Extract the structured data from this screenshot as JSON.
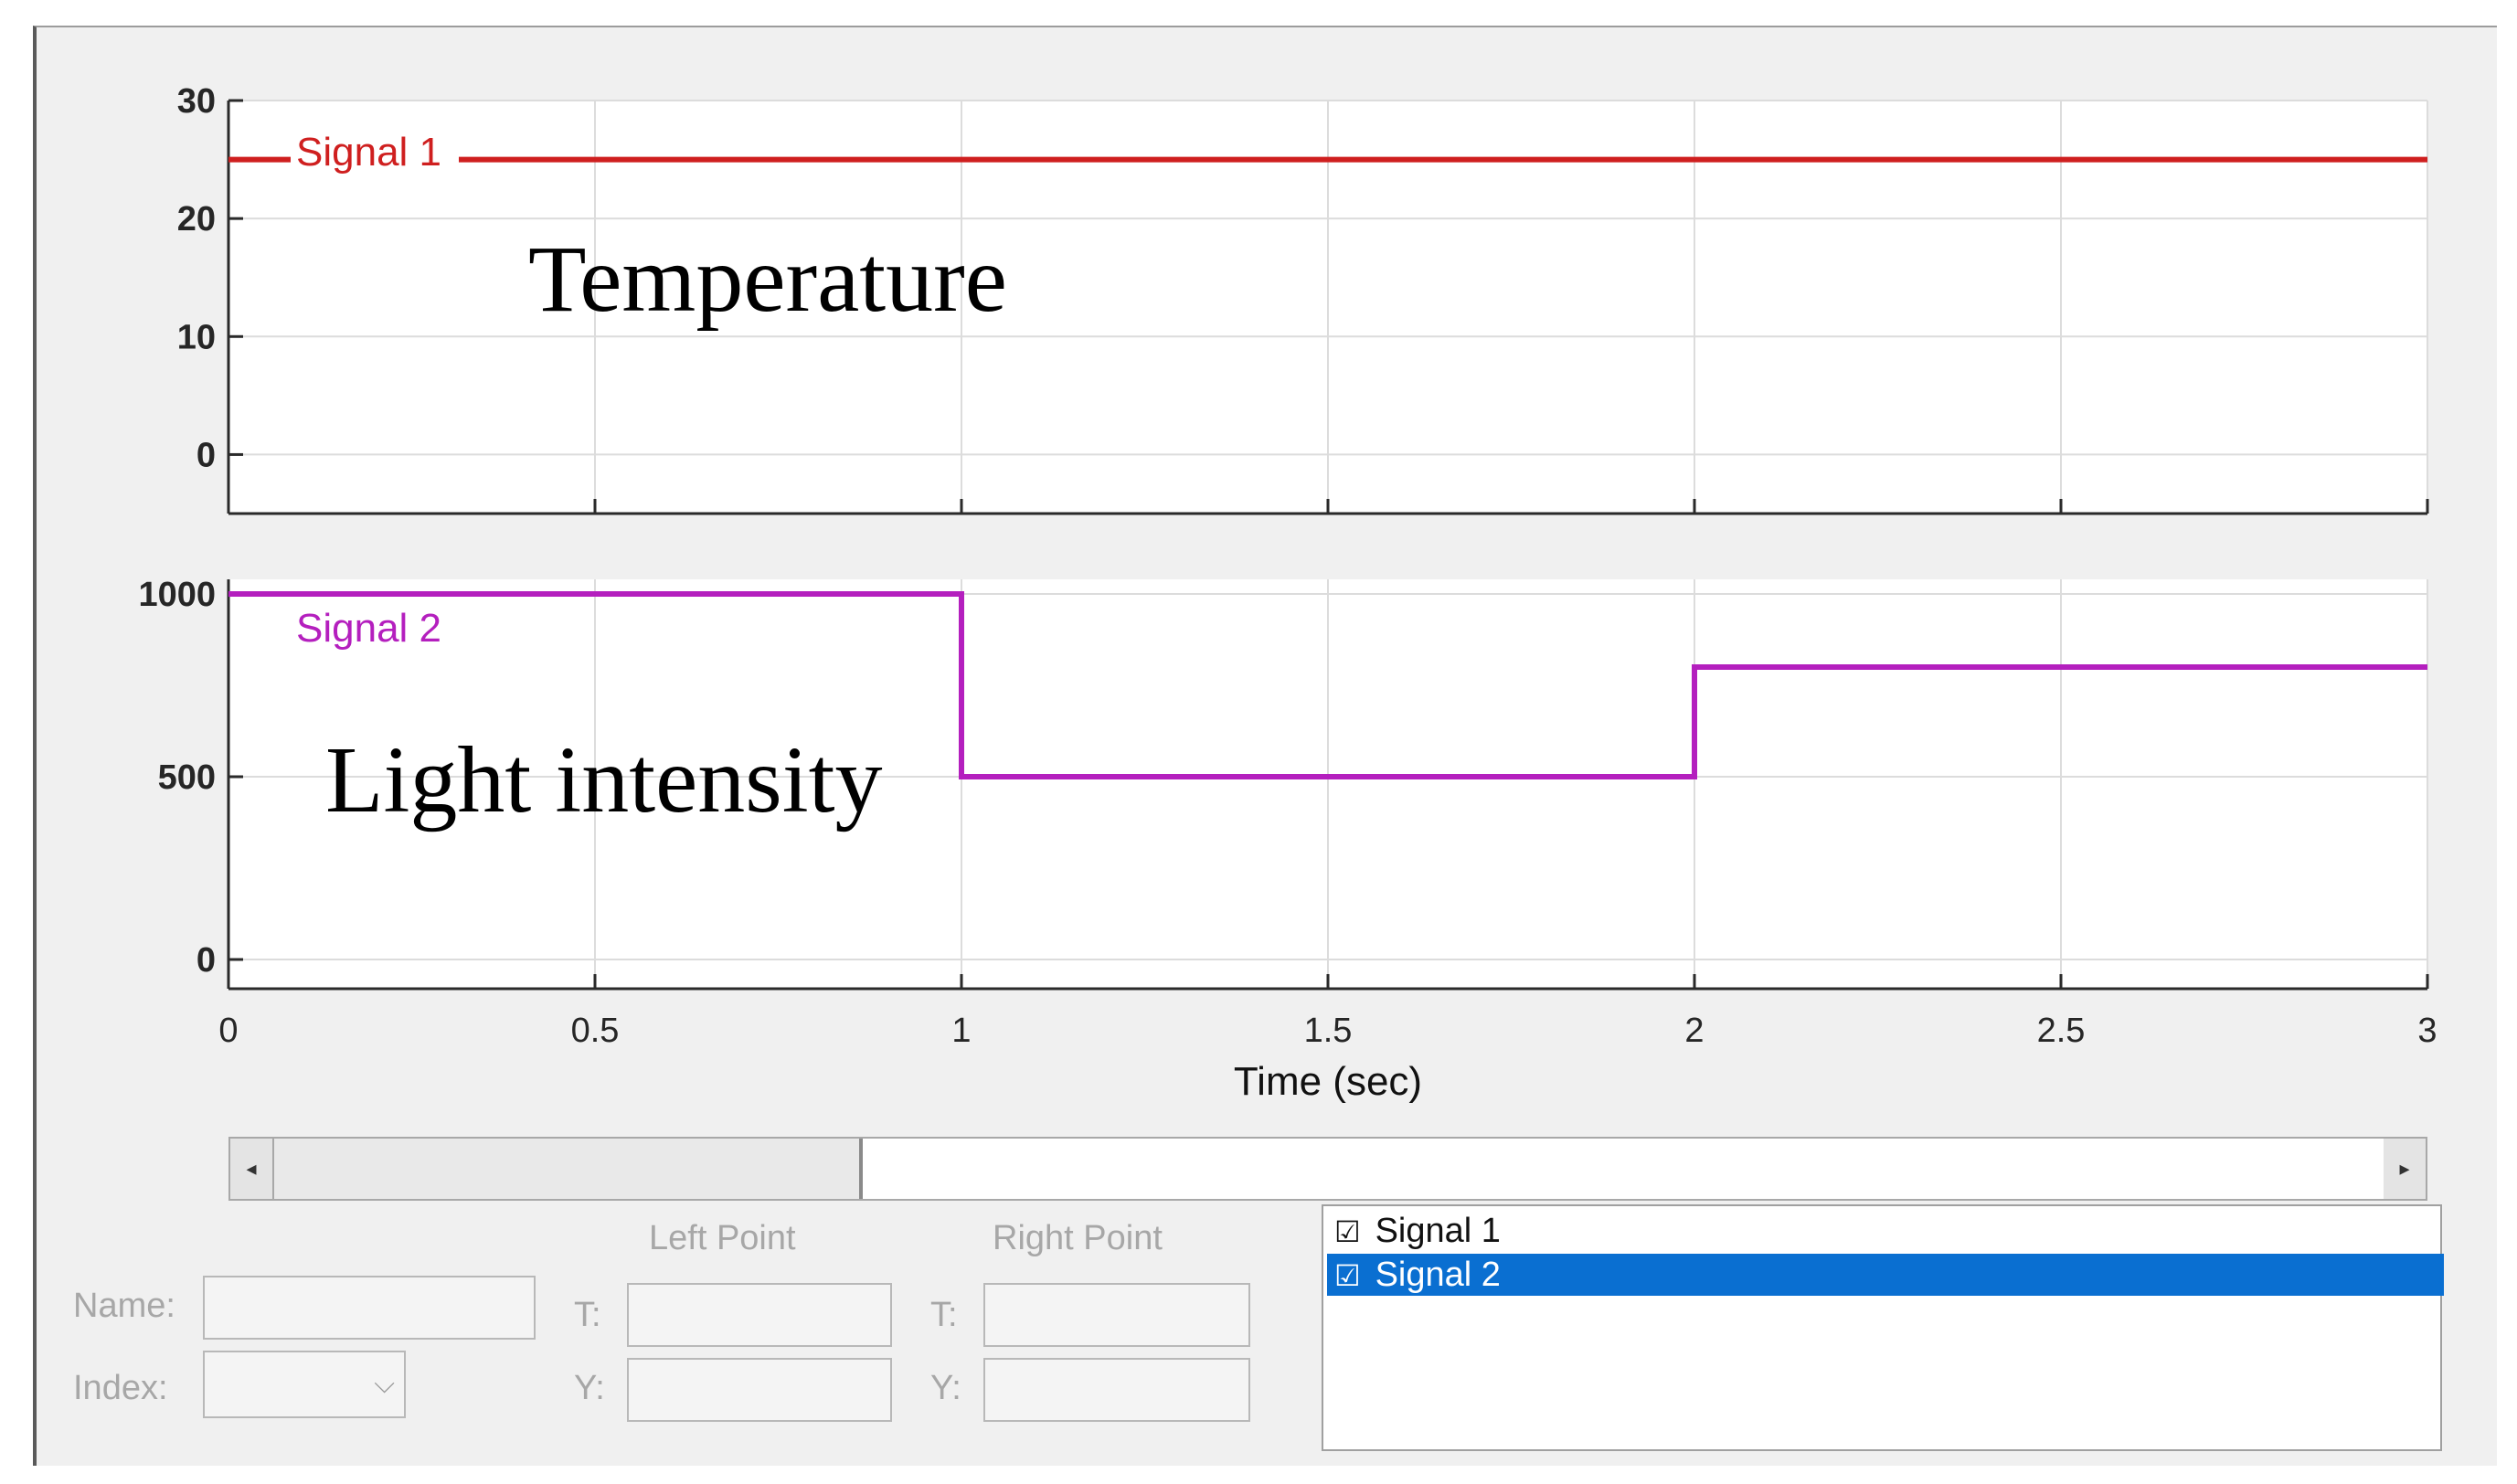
{
  "plots": [
    {
      "id": "temperature",
      "annotation": "Temperature",
      "signal_label": "Signal 1",
      "color": "#cf1f1f",
      "ylim": [
        -5,
        30
      ],
      "yticks": [
        "30",
        "20",
        "10",
        "0"
      ],
      "data": [
        [
          0,
          25
        ],
        [
          3,
          25
        ]
      ]
    },
    {
      "id": "light",
      "annotation": "Light intensity",
      "signal_label": "Signal 2",
      "color": "#b41fbe",
      "ylim": [
        -80,
        1040
      ],
      "yticks": [
        "1000",
        "500",
        "0"
      ],
      "data": [
        [
          0,
          1000
        ],
        [
          1,
          1000
        ],
        [
          1,
          500
        ],
        [
          2,
          500
        ],
        [
          2,
          800
        ],
        [
          3,
          800
        ]
      ]
    }
  ],
  "xaxis": {
    "label": "Time (sec)",
    "xlim": [
      0,
      3
    ],
    "ticks": [
      "0",
      "0.5",
      "1",
      "1.5",
      "2",
      "2.5",
      "3"
    ]
  },
  "controls": {
    "left_point_header": "Left Point",
    "right_point_header": "Right Point",
    "name_label": "Name:",
    "index_label": "Index:",
    "t_label": "T:",
    "y_label": "Y:"
  },
  "signal_list": [
    {
      "label": "Signal 1",
      "checked_glyph": "☑",
      "selected": false
    },
    {
      "label": "Signal 2",
      "checked_glyph": "☑",
      "selected": true
    }
  ]
}
